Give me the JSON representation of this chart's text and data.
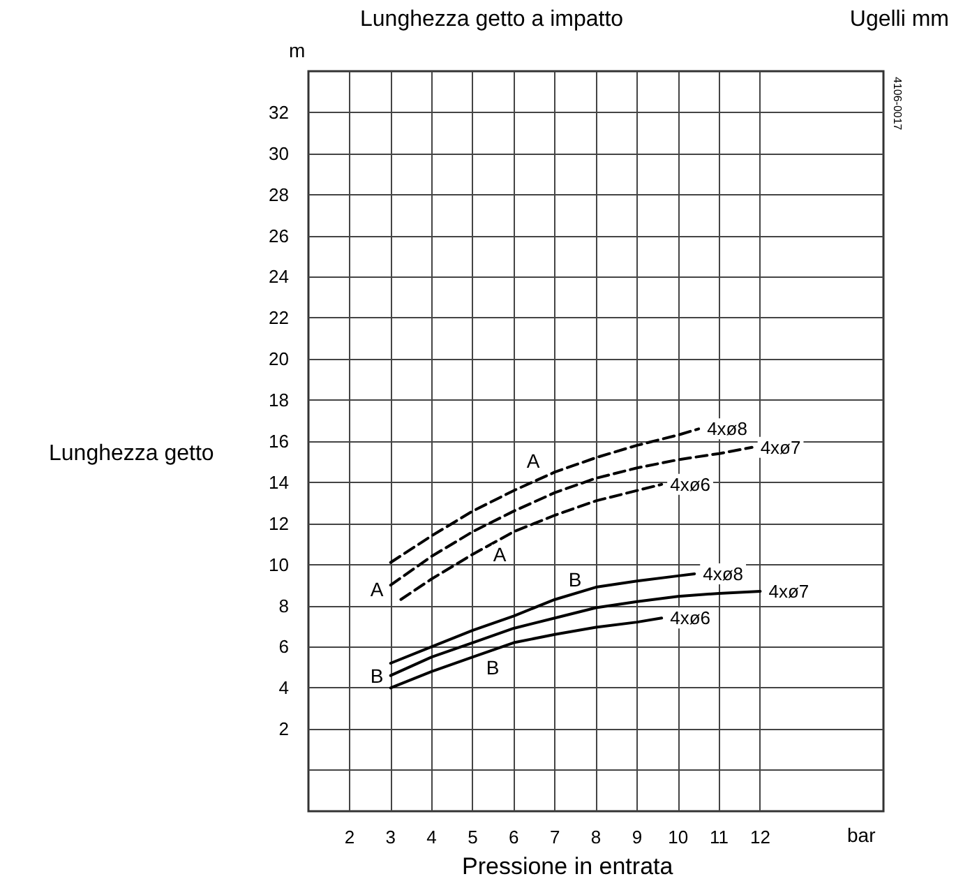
{
  "chart_data": {
    "type": "line",
    "title": "Lunghezza getto a impatto",
    "subtitle": "Ugelli mm",
    "ylabel": "Lunghezza getto",
    "xlabel": "Pressione in entrata",
    "xlim": [
      1,
      15
    ],
    "xticks": [
      2,
      3,
      4,
      5,
      6,
      7,
      8,
      9,
      10,
      11,
      12
    ],
    "ylim": [
      -2,
      34
    ],
    "yticks": [
      {
        "value": 0,
        "label": null
      },
      2,
      4,
      6,
      8,
      10,
      12,
      14,
      16,
      18,
      20,
      22,
      24,
      26,
      28,
      30,
      32
    ],
    "grid": true,
    "legend": false,
    "marker": "none",
    "series": [
      {
        "name": "4xø8",
        "color": "#000000",
        "line_style": "dashed",
        "x": [
          3,
          4,
          5,
          6,
          7,
          8,
          9,
          10,
          10.5
        ],
        "values": [
          10.1,
          11.4,
          12.6,
          13.6,
          14.5,
          15.2,
          15.8,
          16.3,
          16.6
        ]
      },
      {
        "name": "4xø7",
        "color": "#000000",
        "line_style": "dashed",
        "x": [
          3,
          4,
          5,
          6,
          7,
          8,
          9,
          10,
          11,
          11.8
        ],
        "values": [
          9.0,
          10.4,
          11.6,
          12.6,
          13.5,
          14.2,
          14.7,
          15.1,
          15.4,
          15.7
        ]
      },
      {
        "name": "4xø6",
        "color": "#000000",
        "line_style": "dashed",
        "x": [
          3.25,
          4,
          5,
          6,
          7,
          8,
          9,
          9.6
        ],
        "values": [
          8.3,
          9.3,
          10.5,
          11.6,
          12.4,
          13.1,
          13.6,
          13.9
        ]
      },
      {
        "name": "4xø8",
        "color": "#000000",
        "line_style": "solid",
        "x": [
          3,
          4,
          5,
          6,
          7,
          8,
          9,
          10,
          10.4
        ],
        "values": [
          5.2,
          6.0,
          6.8,
          7.5,
          8.3,
          8.9,
          9.2,
          9.45,
          9.55
        ]
      },
      {
        "name": "4xø7",
        "color": "#000000",
        "line_style": "solid",
        "x": [
          3,
          4,
          5,
          6,
          7,
          8,
          9,
          10,
          11,
          12
        ],
        "values": [
          4.6,
          5.5,
          6.2,
          6.9,
          7.4,
          7.9,
          8.2,
          8.45,
          8.6,
          8.7
        ]
      },
      {
        "name": "4xø6",
        "color": "#000000",
        "line_style": "solid",
        "x": [
          3,
          4,
          5,
          6,
          7,
          8,
          9,
          9.6
        ],
        "values": [
          4.0,
          4.8,
          5.5,
          6.2,
          6.6,
          6.95,
          7.2,
          7.4
        ]
      }
    ],
    "annotations": [
      "m",
      "bar",
      "4106-0017",
      "A",
      "A",
      "A",
      "B",
      "B",
      "B"
    ]
  }
}
